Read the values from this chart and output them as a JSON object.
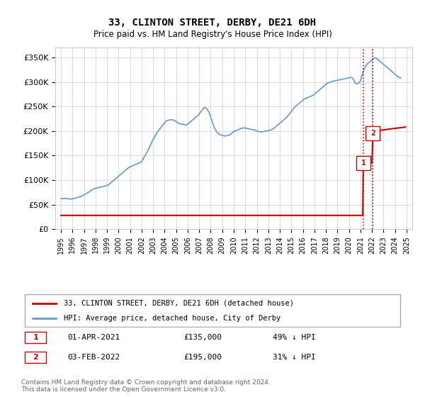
{
  "title": "33, CLINTON STREET, DERBY, DE21 6DH",
  "subtitle": "Price paid vs. HM Land Registry's House Price Index (HPI)",
  "ylabel_ticks": [
    "£0",
    "£50K",
    "£100K",
    "£150K",
    "£200K",
    "£250K",
    "£300K",
    "£350K"
  ],
  "ytick_values": [
    0,
    50000,
    100000,
    150000,
    200000,
    250000,
    300000,
    350000
  ],
  "ylim": [
    0,
    370000
  ],
  "xlim_start": 1994.5,
  "xlim_end": 2025.5,
  "red_color": "#cc0000",
  "blue_color": "#6699cc",
  "sale1_date": 2021.25,
  "sale1_price": 135000,
  "sale1_label": "1",
  "sale1_text": "01-APR-2021    £135,000    49% ↓ HPI",
  "sale2_date": 2022.08,
  "sale2_price": 195000,
  "sale2_label": "2",
  "sale2_text": "03-FEB-2022    £195,000    31% ↓ HPI",
  "legend_line1": "33, CLINTON STREET, DERBY, DE21 6DH (detached house)",
  "legend_line2": "HPI: Average price, detached house, City of Derby",
  "footer": "Contains HM Land Registry data © Crown copyright and database right 2024.\nThis data is licensed under the Open Government Licence v3.0.",
  "hpi_years": [
    1995.0,
    1995.1,
    1995.2,
    1995.3,
    1995.4,
    1995.5,
    1995.6,
    1995.7,
    1995.8,
    1995.9,
    1996.0,
    1996.1,
    1996.2,
    1996.3,
    1996.4,
    1996.5,
    1996.6,
    1996.7,
    1996.8,
    1996.9,
    1997.0,
    1997.1,
    1997.2,
    1997.3,
    1997.4,
    1997.5,
    1997.6,
    1997.7,
    1997.8,
    1997.9,
    1998.0,
    1998.1,
    1998.2,
    1998.3,
    1998.4,
    1998.5,
    1998.6,
    1998.7,
    1998.8,
    1998.9,
    1999.0,
    1999.1,
    1999.2,
    1999.3,
    1999.4,
    1999.5,
    1999.6,
    1999.7,
    1999.8,
    1999.9,
    2000.0,
    2000.1,
    2000.2,
    2000.3,
    2000.4,
    2000.5,
    2000.6,
    2000.7,
    2000.8,
    2000.9,
    2001.0,
    2001.1,
    2001.2,
    2001.3,
    2001.4,
    2001.5,
    2001.6,
    2001.7,
    2001.8,
    2001.9,
    2002.0,
    2002.1,
    2002.2,
    2002.3,
    2002.4,
    2002.5,
    2002.6,
    2002.7,
    2002.8,
    2002.9,
    2003.0,
    2003.1,
    2003.2,
    2003.3,
    2003.4,
    2003.5,
    2003.6,
    2003.7,
    2003.8,
    2003.9,
    2004.0,
    2004.1,
    2004.2,
    2004.3,
    2004.4,
    2004.5,
    2004.6,
    2004.7,
    2004.8,
    2004.9,
    2005.0,
    2005.1,
    2005.2,
    2005.3,
    2005.4,
    2005.5,
    2005.6,
    2005.7,
    2005.8,
    2005.9,
    2006.0,
    2006.1,
    2006.2,
    2006.3,
    2006.4,
    2006.5,
    2006.6,
    2006.7,
    2006.8,
    2006.9,
    2007.0,
    2007.1,
    2007.2,
    2007.3,
    2007.4,
    2007.5,
    2007.6,
    2007.7,
    2007.8,
    2007.9,
    2008.0,
    2008.1,
    2008.2,
    2008.3,
    2008.4,
    2008.5,
    2008.6,
    2008.7,
    2008.8,
    2008.9,
    2009.0,
    2009.1,
    2009.2,
    2009.3,
    2009.4,
    2009.5,
    2009.6,
    2009.7,
    2009.8,
    2009.9,
    2010.0,
    2010.1,
    2010.2,
    2010.3,
    2010.4,
    2010.5,
    2010.6,
    2010.7,
    2010.8,
    2010.9,
    2011.0,
    2011.1,
    2011.2,
    2011.3,
    2011.4,
    2011.5,
    2011.6,
    2011.7,
    2011.8,
    2011.9,
    2012.0,
    2012.1,
    2012.2,
    2012.3,
    2012.4,
    2012.5,
    2012.6,
    2012.7,
    2012.8,
    2012.9,
    2013.0,
    2013.1,
    2013.2,
    2013.3,
    2013.4,
    2013.5,
    2013.6,
    2013.7,
    2013.8,
    2013.9,
    2014.0,
    2014.1,
    2014.2,
    2014.3,
    2014.4,
    2014.5,
    2014.6,
    2014.7,
    2014.8,
    2014.9,
    2015.0,
    2015.1,
    2015.2,
    2015.3,
    2015.4,
    2015.5,
    2015.6,
    2015.7,
    2015.8,
    2015.9,
    2016.0,
    2016.1,
    2016.2,
    2016.3,
    2016.4,
    2016.5,
    2016.6,
    2016.7,
    2016.8,
    2016.9,
    2017.0,
    2017.1,
    2017.2,
    2017.3,
    2017.4,
    2017.5,
    2017.6,
    2017.7,
    2017.8,
    2017.9,
    2018.0,
    2018.1,
    2018.2,
    2018.3,
    2018.4,
    2018.5,
    2018.6,
    2018.7,
    2018.8,
    2018.9,
    2019.0,
    2019.1,
    2019.2,
    2019.3,
    2019.4,
    2019.5,
    2019.6,
    2019.7,
    2019.8,
    2019.9,
    2020.0,
    2020.1,
    2020.2,
    2020.3,
    2020.4,
    2020.5,
    2020.6,
    2020.7,
    2020.8,
    2020.9,
    2021.0,
    2021.1,
    2021.2,
    2021.3,
    2021.4,
    2021.5,
    2021.6,
    2021.7,
    2021.8,
    2021.9,
    2022.0,
    2022.1,
    2022.2,
    2022.3,
    2022.4,
    2022.5,
    2022.6,
    2022.7,
    2022.8,
    2022.9,
    2023.0,
    2023.1,
    2023.2,
    2023.3,
    2023.4,
    2023.5,
    2023.6,
    2023.7,
    2023.8,
    2023.9,
    2024.0,
    2024.1,
    2024.2,
    2024.3,
    2024.4,
    2024.5
  ],
  "hpi_values": [
    62000,
    62200,
    62400,
    62600,
    62300,
    62100,
    62000,
    61800,
    61500,
    61200,
    61800,
    62400,
    63000,
    63600,
    64200,
    65000,
    65800,
    66600,
    67400,
    68200,
    69500,
    71000,
    72500,
    74000,
    75500,
    77000,
    78500,
    80000,
    81500,
    83000,
    83500,
    84000,
    84500,
    85000,
    85500,
    86000,
    86500,
    87000,
    87500,
    88000,
    89000,
    90500,
    92000,
    94000,
    96000,
    98000,
    100000,
    102000,
    104000,
    106000,
    108000,
    110000,
    112000,
    114000,
    116000,
    118000,
    120000,
    122000,
    124000,
    126000,
    127000,
    128000,
    129000,
    130000,
    131000,
    132000,
    133000,
    134000,
    135000,
    136000,
    138000,
    142000,
    146000,
    150000,
    154000,
    158000,
    163000,
    168000,
    173000,
    178000,
    183000,
    187000,
    191000,
    195000,
    198500,
    202000,
    205000,
    208000,
    211000,
    214000,
    217000,
    220000,
    221000,
    222000,
    222500,
    223000,
    223000,
    222500,
    222000,
    221000,
    219000,
    217500,
    216000,
    215000,
    214500,
    214000,
    213500,
    213000,
    212500,
    212000,
    214000,
    216000,
    218000,
    220000,
    222000,
    224000,
    226000,
    228000,
    230000,
    232000,
    235000,
    238000,
    241000,
    244000,
    247000,
    248000,
    247000,
    244000,
    240000,
    235000,
    228000,
    221000,
    214000,
    208000,
    203000,
    199000,
    196000,
    194000,
    193000,
    192000,
    191000,
    190500,
    190000,
    190000,
    190500,
    191000,
    192000,
    193000,
    195000,
    197000,
    199000,
    200000,
    201000,
    202000,
    203000,
    204000,
    205000,
    205500,
    206000,
    206500,
    206000,
    205500,
    205000,
    204500,
    204000,
    203500,
    203000,
    202500,
    202000,
    201500,
    200000,
    199500,
    199000,
    198500,
    198000,
    198500,
    199000,
    199500,
    200000,
    200500,
    201000,
    201500,
    202000,
    203000,
    204000,
    206000,
    208000,
    210000,
    212000,
    214000,
    216000,
    218000,
    220000,
    222000,
    224000,
    226000,
    228000,
    231000,
    234000,
    237000,
    240000,
    243000,
    246000,
    249000,
    251000,
    253000,
    255000,
    257000,
    259000,
    261000,
    263000,
    265000,
    266000,
    267000,
    268000,
    269000,
    270000,
    271000,
    272000,
    273000,
    275000,
    277000,
    279000,
    281000,
    283000,
    285000,
    287000,
    289000,
    291000,
    293000,
    295000,
    297000,
    298000,
    299000,
    300000,
    301000,
    301500,
    302000,
    302500,
    303000,
    303500,
    304000,
    304500,
    305000,
    305500,
    306000,
    306500,
    307000,
    307500,
    308000,
    308500,
    309000,
    309500,
    308000,
    305000,
    300000,
    297000,
    296000,
    297000,
    299000,
    303000,
    310000,
    318000,
    326000,
    330000,
    334000,
    337000,
    339000,
    341000,
    343000,
    345000,
    347000,
    348000,
    349000,
    348000,
    346000,
    344000,
    342000,
    340000,
    338000,
    336000,
    334000,
    332000,
    330000,
    328000,
    326000,
    324000,
    322000,
    320000,
    318000,
    316000,
    314000,
    312000,
    310000,
    309000,
    308000
  ]
}
